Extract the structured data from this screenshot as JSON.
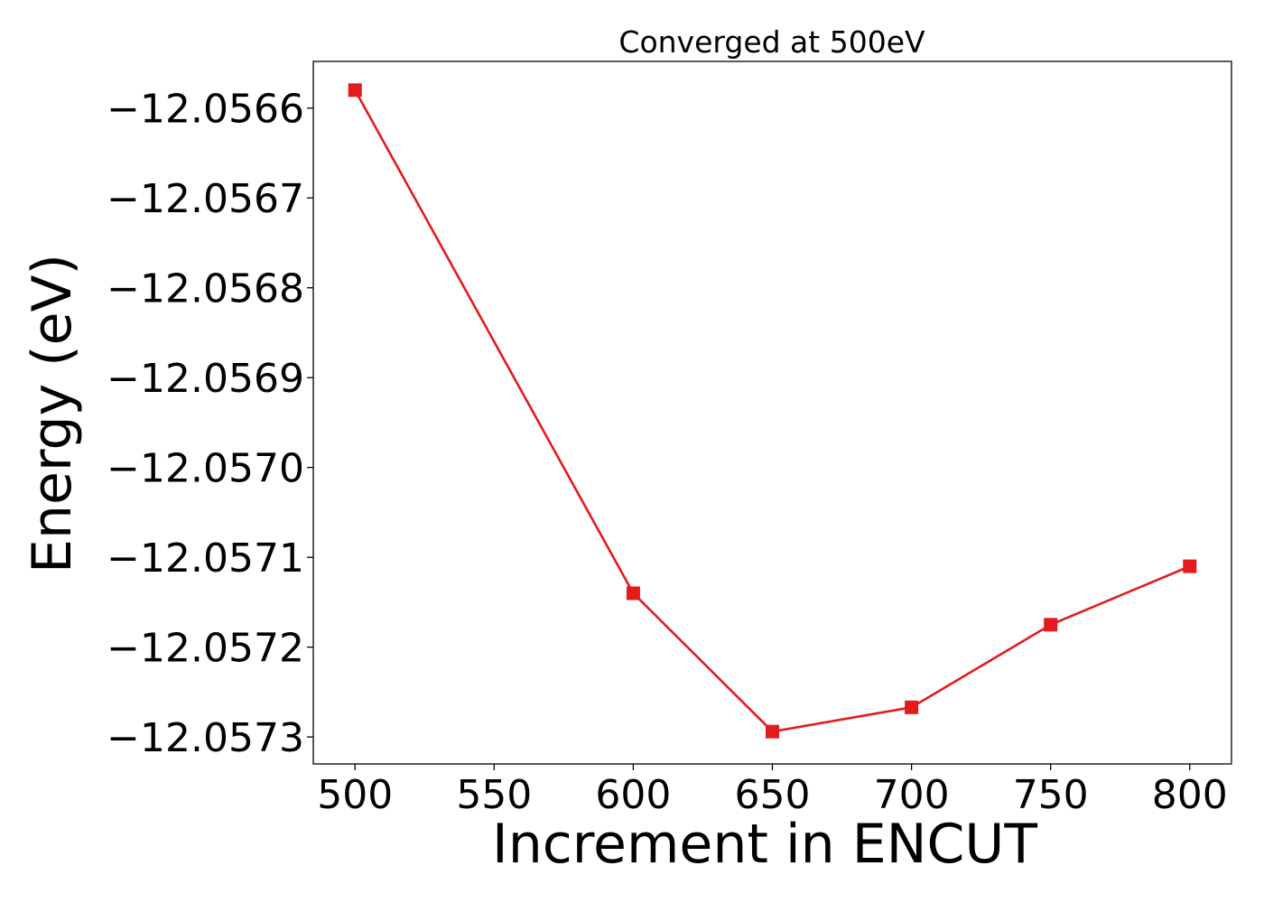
{
  "chart_data": {
    "type": "line",
    "title": "Converged at 500eV",
    "xlabel": "Increment in ENCUT",
    "ylabel": "Energy (eV)",
    "x": [
      500,
      600,
      650,
      700,
      750,
      800
    ],
    "series": [
      {
        "values": [
          -12.05658,
          -12.05714,
          -12.057294,
          -12.057267,
          -12.057175,
          -12.05711
        ],
        "color": "#e41a1c",
        "marker": "square"
      }
    ],
    "xlim": [
      485,
      815
    ],
    "ylim": [
      -12.05733,
      -12.056548
    ],
    "xticks": [
      500,
      550,
      600,
      650,
      700,
      750,
      800
    ],
    "xtick_labels": [
      "500",
      "550",
      "600",
      "650",
      "700",
      "750",
      "800"
    ],
    "yticks": [
      -12.0566,
      -12.0567,
      -12.0568,
      -12.0569,
      -12.057,
      -12.0571,
      -12.0572,
      -12.0573
    ],
    "ytick_labels": [
      "−12.0566",
      "−12.0567",
      "−12.0568",
      "−12.0569",
      "−12.0570",
      "−12.0571",
      "−12.0572",
      "−12.0573"
    ],
    "grid": false,
    "legend": "none"
  }
}
